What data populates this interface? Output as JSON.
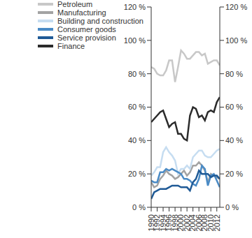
{
  "chart_data": {
    "type": "line",
    "x": [
      1990,
      1991,
      1992,
      1993,
      1994,
      1995,
      1996,
      1997,
      1998,
      1999,
      2000,
      2001,
      2002,
      2003,
      2004,
      2005,
      2006,
      2007,
      2008,
      2009,
      2010,
      2011,
      2012,
      2013
    ],
    "series": [
      {
        "name": "Petroleum",
        "color": "#c8c8c8",
        "values": [
          84,
          83,
          80,
          79,
          79,
          82,
          88,
          88,
          75,
          84,
          94,
          92,
          89,
          89,
          91,
          93,
          93,
          91,
          92,
          86,
          87,
          88,
          88,
          85
        ]
      },
      {
        "name": "Manufacturing",
        "color": "#a3a3a3",
        "values": [
          15,
          12,
          13,
          17,
          19,
          22,
          20,
          19,
          17,
          18,
          20,
          22,
          19,
          21,
          25,
          25,
          27,
          25,
          22,
          15,
          20,
          19,
          18,
          17
        ]
      },
      {
        "name": "Building and construction",
        "color": "#c6ddf1",
        "values": [
          19,
          21,
          24,
          24,
          33,
          36,
          33,
          31,
          28,
          20,
          23,
          23,
          25,
          23,
          30,
          32,
          34,
          34,
          31,
          30,
          30,
          32,
          34,
          35
        ]
      },
      {
        "name": "Consumer goods",
        "color": "#4a8bc6",
        "values": [
          16,
          15,
          15,
          21,
          21,
          23,
          22,
          23,
          22,
          21,
          20,
          17,
          17,
          16,
          14,
          13,
          17,
          25,
          23,
          13,
          19,
          20,
          16,
          12
        ]
      },
      {
        "name": "Service provision",
        "color": "#1f5a96",
        "values": [
          5,
          9,
          10,
          11,
          11,
          11,
          12,
          13,
          13,
          13,
          12,
          12,
          12,
          10,
          15,
          17,
          22,
          20,
          20,
          20,
          18,
          19,
          19,
          17
        ]
      },
      {
        "name": "Finance",
        "color": "#2b2b2b",
        "values": [
          51,
          53,
          55,
          57,
          58,
          53,
          48,
          50,
          51,
          44,
          44,
          41,
          40,
          55,
          60,
          59,
          54,
          55,
          52,
          57,
          58,
          57,
          63,
          66
        ]
      }
    ],
    "xlim": [
      1990,
      2013
    ],
    "xticks": [
      1990,
      1992,
      1994,
      1996,
      1998,
      2000,
      2002,
      2004,
      2006,
      2008,
      2010,
      2012
    ],
    "ylim": [
      0,
      120
    ],
    "yticks": [
      {
        "value": 0,
        "label": "0 %"
      },
      {
        "value": 20,
        "label": "20 %"
      },
      {
        "value": 40,
        "label": "40 %"
      },
      {
        "value": 60,
        "label": "60 %"
      },
      {
        "value": 80,
        "label": "80 %"
      },
      {
        "value": 100,
        "label": "100 %"
      },
      {
        "value": 120,
        "label": "120 %"
      }
    ],
    "y2lim": [
      0,
      120
    ],
    "y2ticks": [
      {
        "value": 0,
        "label": "0 %"
      },
      {
        "value": 20,
        "label": "20 %"
      },
      {
        "value": 40,
        "label": "40 %"
      },
      {
        "value": 60,
        "label": "60 %"
      },
      {
        "value": 80,
        "label": "80 %"
      },
      {
        "value": 100,
        "label": "100 %"
      },
      {
        "value": 120,
        "label": "120 %"
      }
    ],
    "grid": false,
    "legend": "top-left"
  }
}
